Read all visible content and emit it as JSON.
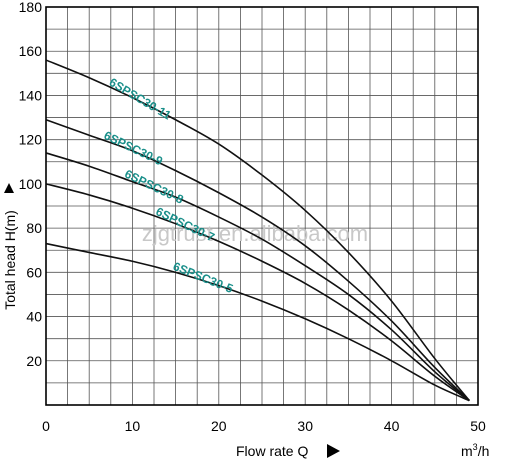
{
  "chart_data": {
    "type": "line",
    "xlabel": "Flow rate Q",
    "ylabel": "Total head H(m)",
    "x_unit_prefix": "m",
    "x_unit_power": "3",
    "x_unit_suffix": "/h",
    "xlim": [
      0,
      50
    ],
    "ylim": [
      0,
      180
    ],
    "x_ticks": [
      0,
      10,
      20,
      30,
      40,
      50
    ],
    "y_ticks": [
      20,
      40,
      60,
      80,
      100,
      120,
      140,
      160,
      180
    ],
    "x_origin_label": "0",
    "grid": true,
    "watermark": "zjgtrust.en.alibaba.com",
    "series": [
      {
        "name": "6SPSC30-11",
        "color": "#1a8f8a",
        "x": [
          0,
          5,
          10,
          15,
          20,
          25,
          30,
          35,
          40,
          45,
          49
        ],
        "y": [
          156,
          148,
          139,
          129,
          118,
          104,
          88,
          69,
          47,
          21,
          2
        ]
      },
      {
        "name": "6SPSC30-9",
        "color": "#1a8f8a",
        "x": [
          0,
          5,
          10,
          15,
          20,
          25,
          30,
          35,
          40,
          45,
          49
        ],
        "y": [
          129,
          122,
          115,
          106,
          96,
          85,
          72,
          56,
          38,
          17,
          2
        ]
      },
      {
        "name": "6SPSC30-8",
        "color": "#1a8f8a",
        "x": [
          0,
          5,
          10,
          15,
          20,
          25,
          30,
          35,
          40,
          45,
          49
        ],
        "y": [
          114,
          108,
          101,
          94,
          85,
          75,
          63,
          50,
          34,
          15,
          2
        ]
      },
      {
        "name": "6SPSC30-7",
        "color": "#1a8f8a",
        "x": [
          0,
          5,
          10,
          15,
          20,
          25,
          30,
          35,
          40,
          45,
          49
        ],
        "y": [
          100,
          95,
          89,
          82,
          74,
          65,
          55,
          43,
          29,
          13,
          2
        ]
      },
      {
        "name": "6SPSC30-5",
        "color": "#1a8f8a",
        "x": [
          0,
          5,
          10,
          15,
          20,
          25,
          30,
          35,
          40,
          45,
          49
        ],
        "y": [
          73,
          69,
          65,
          60,
          54,
          47,
          39,
          30,
          20,
          9,
          2
        ]
      }
    ]
  }
}
